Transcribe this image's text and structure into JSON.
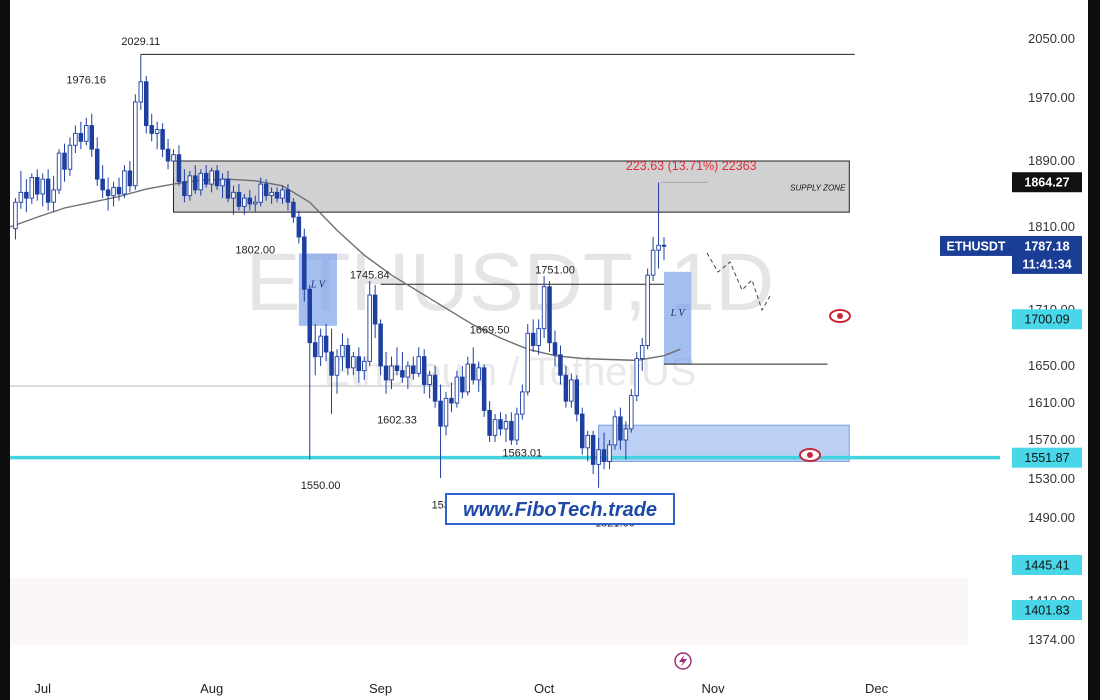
{
  "chart_data": {
    "type": "candlestick",
    "watermark": {
      "symbol": "ETHUSDT, 1D",
      "pair": "Ethereum / TetherUS"
    },
    "ylim": [
      1370,
      2078
    ],
    "y_ticks": [
      2050,
      1970,
      1890,
      1810,
      1710,
      1650,
      1610,
      1570,
      1530,
      1490,
      1410,
      1374
    ],
    "y_tick_labels": [
      "2050.00",
      "1970.00",
      "1890.00",
      "1810.00",
      "1710.00",
      "1650.00",
      "1610.00",
      "1570.00",
      "1530.00",
      "1490.00",
      "1410.00",
      "1374.00"
    ],
    "x_labels": [
      {
        "label": "Jul",
        "day": 6
      },
      {
        "label": "Aug",
        "day": 37
      },
      {
        "label": "Sep",
        "day": 68
      },
      {
        "label": "Oct",
        "day": 98
      },
      {
        "label": "Nov",
        "day": 129
      },
      {
        "label": "Dec",
        "day": 159
      }
    ],
    "price_labels": [
      {
        "text": "1864.27",
        "price": 1864.27,
        "style": "dark"
      },
      {
        "text": "1787.18",
        "price": 1787.18,
        "style": "navy"
      },
      {
        "text": "11:41:34",
        "style": "navy-sub"
      },
      {
        "text": "1700.09",
        "price": 1700.09,
        "style": "cyan"
      },
      {
        "text": "1551.87",
        "price": 1551.87,
        "style": "cyan"
      },
      {
        "text": "1445.41",
        "price": 1445.41,
        "style": "cyan"
      },
      {
        "text": "1401.83",
        "price": 1401.83,
        "style": "cyan"
      }
    ],
    "symbol_tag": "ETHUSDT",
    "annotations": [
      {
        "text": "2029.11",
        "day": 24,
        "price": 2042
      },
      {
        "text": "1976.16",
        "day": 14,
        "price": 1990
      },
      {
        "text": "1802.00",
        "day": 45,
        "price": 1778
      },
      {
        "text": "1745.84",
        "day": 66,
        "price": 1748
      },
      {
        "text": "1751.00",
        "day": 100,
        "price": 1754
      },
      {
        "text": "1669.50",
        "day": 88,
        "price": 1685
      },
      {
        "text": "1602.33",
        "day": 71,
        "price": 1588
      },
      {
        "text": "1550.00",
        "day": 57,
        "price": 1520
      },
      {
        "text": "1531.01",
        "day": 81,
        "price": 1500
      },
      {
        "text": "1563.01",
        "day": 94,
        "price": 1553
      },
      {
        "text": "1521.00",
        "day": 111,
        "price": 1482
      }
    ],
    "supply_zone": {
      "label": "SUPPLY ZONE",
      "from_day": 30,
      "to_day": 154,
      "top": 1890,
      "bottom": 1828
    },
    "demand_zone": {
      "from_day": 108,
      "to_day": 154,
      "top": 1586,
      "bottom": 1548
    },
    "liquidity_voids": [
      {
        "label": "L V",
        "from_day": 53,
        "to_day": 60,
        "top": 1778,
        "bottom": 1693
      },
      {
        "label": "L V",
        "from_day": 120,
        "to_day": 125,
        "top": 1756,
        "bottom": 1652
      }
    ],
    "horizontal_levels": [
      {
        "price": 2029.11,
        "from_day": 24,
        "to_day": 155
      },
      {
        "price": 1741,
        "from_day": 68,
        "to_day": 120
      },
      {
        "price": 1652,
        "from_day": 120,
        "to_day": 150
      },
      {
        "price": 1551.87,
        "from_day": 0,
        "to_day": 200
      }
    ],
    "measure": {
      "text": "223.63 (13.71%) 22363"
    },
    "ema": [
      [
        0,
        1810
      ],
      [
        5,
        1822
      ],
      [
        10,
        1833
      ],
      [
        15,
        1840
      ],
      [
        20,
        1847
      ],
      [
        25,
        1856
      ],
      [
        30,
        1862
      ],
      [
        35,
        1867
      ],
      [
        40,
        1868
      ],
      [
        45,
        1866
      ],
      [
        50,
        1860
      ],
      [
        55,
        1840
      ],
      [
        60,
        1806
      ],
      [
        65,
        1776
      ],
      [
        70,
        1752
      ],
      [
        75,
        1732
      ],
      [
        80,
        1712
      ],
      [
        85,
        1694
      ],
      [
        90,
        1680
      ],
      [
        95,
        1668
      ],
      [
        100,
        1661
      ],
      [
        105,
        1658
      ],
      [
        110,
        1657
      ],
      [
        115,
        1656
      ],
      [
        120,
        1661
      ],
      [
        123,
        1668
      ]
    ],
    "candles": [
      [
        1,
        1808,
        1845,
        1795,
        1840
      ],
      [
        2,
        1840,
        1878,
        1832,
        1852
      ],
      [
        3,
        1852,
        1868,
        1828,
        1845
      ],
      [
        4,
        1845,
        1875,
        1838,
        1870
      ],
      [
        5,
        1870,
        1880,
        1842,
        1850
      ],
      [
        6,
        1850,
        1875,
        1835,
        1868
      ],
      [
        7,
        1868,
        1880,
        1830,
        1840
      ],
      [
        8,
        1840,
        1872,
        1828,
        1855
      ],
      [
        9,
        1855,
        1905,
        1850,
        1900
      ],
      [
        10,
        1900,
        1912,
        1865,
        1880
      ],
      [
        11,
        1880,
        1920,
        1872,
        1910
      ],
      [
        12,
        1910,
        1935,
        1900,
        1925
      ],
      [
        13,
        1925,
        1940,
        1905,
        1915
      ],
      [
        14,
        1915,
        1945,
        1910,
        1935
      ],
      [
        15,
        1935,
        1950,
        1895,
        1905
      ],
      [
        16,
        1905,
        1920,
        1860,
        1868
      ],
      [
        17,
        1868,
        1885,
        1845,
        1855
      ],
      [
        18,
        1855,
        1870,
        1830,
        1848
      ],
      [
        19,
        1848,
        1865,
        1835,
        1858
      ],
      [
        20,
        1858,
        1870,
        1842,
        1850
      ],
      [
        21,
        1850,
        1885,
        1845,
        1878
      ],
      [
        22,
        1878,
        1890,
        1852,
        1860
      ],
      [
        23,
        1860,
        1975,
        1855,
        1965
      ],
      [
        24,
        1965,
        2029,
        1955,
        1992
      ],
      [
        25,
        1992,
        2000,
        1925,
        1935
      ],
      [
        26,
        1935,
        1950,
        1915,
        1925
      ],
      [
        27,
        1925,
        1940,
        1905,
        1930
      ],
      [
        28,
        1930,
        1938,
        1895,
        1905
      ],
      [
        29,
        1905,
        1918,
        1880,
        1890
      ],
      [
        30,
        1890,
        1905,
        1870,
        1898
      ],
      [
        31,
        1898,
        1910,
        1860,
        1865
      ],
      [
        32,
        1865,
        1880,
        1840,
        1848
      ],
      [
        33,
        1848,
        1878,
        1842,
        1872
      ],
      [
        34,
        1872,
        1885,
        1850,
        1855
      ],
      [
        35,
        1855,
        1880,
        1848,
        1875
      ],
      [
        36,
        1875,
        1885,
        1858,
        1862
      ],
      [
        37,
        1862,
        1882,
        1852,
        1878
      ],
      [
        38,
        1878,
        1885,
        1855,
        1860
      ],
      [
        39,
        1860,
        1875,
        1845,
        1868
      ],
      [
        40,
        1868,
        1878,
        1840,
        1845
      ],
      [
        41,
        1845,
        1860,
        1825,
        1852
      ],
      [
        42,
        1852,
        1862,
        1830,
        1835
      ],
      [
        43,
        1835,
        1850,
        1825,
        1845
      ],
      [
        44,
        1845,
        1855,
        1830,
        1838
      ],
      [
        45,
        1838,
        1848,
        1828,
        1840
      ],
      [
        46,
        1840,
        1870,
        1835,
        1862
      ],
      [
        47,
        1862,
        1868,
        1842,
        1848
      ],
      [
        48,
        1848,
        1858,
        1838,
        1852
      ],
      [
        49,
        1852,
        1858,
        1840,
        1845
      ],
      [
        50,
        1845,
        1860,
        1838,
        1855
      ],
      [
        51,
        1855,
        1862,
        1830,
        1840
      ],
      [
        52,
        1840,
        1845,
        1815,
        1822
      ],
      [
        53,
        1822,
        1830,
        1790,
        1798
      ],
      [
        54,
        1798,
        1808,
        1720,
        1735
      ],
      [
        55,
        1735,
        1740,
        1550,
        1675
      ],
      [
        56,
        1675,
        1695,
        1640,
        1660
      ],
      [
        57,
        1660,
        1690,
        1650,
        1682
      ],
      [
        58,
        1682,
        1695,
        1655,
        1665
      ],
      [
        59,
        1665,
        1690,
        1598,
        1640
      ],
      [
        60,
        1640,
        1668,
        1620,
        1660
      ],
      [
        61,
        1660,
        1685,
        1645,
        1672
      ],
      [
        62,
        1672,
        1680,
        1640,
        1648
      ],
      [
        63,
        1648,
        1665,
        1640,
        1660
      ],
      [
        64,
        1660,
        1670,
        1632,
        1645
      ],
      [
        65,
        1645,
        1660,
        1635,
        1655
      ],
      [
        66,
        1655,
        1745,
        1650,
        1728
      ],
      [
        67,
        1728,
        1740,
        1680,
        1695
      ],
      [
        68,
        1695,
        1700,
        1640,
        1650
      ],
      [
        69,
        1650,
        1665,
        1620,
        1635
      ],
      [
        70,
        1635,
        1660,
        1625,
        1650
      ],
      [
        71,
        1650,
        1670,
        1640,
        1645
      ],
      [
        72,
        1645,
        1665,
        1632,
        1638
      ],
      [
        73,
        1638,
        1655,
        1625,
        1650
      ],
      [
        74,
        1650,
        1660,
        1635,
        1642
      ],
      [
        75,
        1642,
        1670,
        1638,
        1660
      ],
      [
        76,
        1660,
        1668,
        1620,
        1630
      ],
      [
        77,
        1630,
        1645,
        1615,
        1640
      ],
      [
        78,
        1640,
        1650,
        1605,
        1612
      ],
      [
        79,
        1612,
        1630,
        1531,
        1585
      ],
      [
        80,
        1585,
        1622,
        1575,
        1615
      ],
      [
        81,
        1615,
        1632,
        1600,
        1610
      ],
      [
        82,
        1610,
        1645,
        1605,
        1638
      ],
      [
        83,
        1638,
        1650,
        1615,
        1622
      ],
      [
        84,
        1622,
        1660,
        1618,
        1652
      ],
      [
        85,
        1652,
        1670,
        1630,
        1635
      ],
      [
        86,
        1635,
        1655,
        1622,
        1648
      ],
      [
        87,
        1648,
        1652,
        1595,
        1602
      ],
      [
        88,
        1602,
        1612,
        1568,
        1575
      ],
      [
        89,
        1575,
        1598,
        1568,
        1592
      ],
      [
        90,
        1592,
        1600,
        1575,
        1582
      ],
      [
        91,
        1582,
        1598,
        1568,
        1590
      ],
      [
        92,
        1590,
        1600,
        1565,
        1570
      ],
      [
        93,
        1570,
        1605,
        1565,
        1598
      ],
      [
        94,
        1598,
        1630,
        1592,
        1622
      ],
      [
        95,
        1622,
        1695,
        1618,
        1685
      ],
      [
        96,
        1685,
        1700,
        1665,
        1672
      ],
      [
        97,
        1672,
        1700,
        1662,
        1690
      ],
      [
        98,
        1690,
        1751,
        1680,
        1738
      ],
      [
        99,
        1738,
        1745,
        1665,
        1675
      ],
      [
        100,
        1675,
        1688,
        1650,
        1662
      ],
      [
        101,
        1662,
        1672,
        1630,
        1640
      ],
      [
        102,
        1640,
        1650,
        1605,
        1612
      ],
      [
        103,
        1612,
        1642,
        1605,
        1635
      ],
      [
        104,
        1635,
        1640,
        1590,
        1598
      ],
      [
        105,
        1598,
        1605,
        1555,
        1562
      ],
      [
        106,
        1562,
        1580,
        1548,
        1575
      ],
      [
        107,
        1575,
        1580,
        1535,
        1545
      ],
      [
        108,
        1545,
        1572,
        1521,
        1560
      ],
      [
        109,
        1560,
        1578,
        1540,
        1548
      ],
      [
        110,
        1548,
        1570,
        1540,
        1565
      ],
      [
        111,
        1565,
        1602,
        1560,
        1595
      ],
      [
        112,
        1595,
        1605,
        1560,
        1570
      ],
      [
        113,
        1570,
        1590,
        1550,
        1582
      ],
      [
        114,
        1582,
        1625,
        1578,
        1618
      ],
      [
        115,
        1618,
        1665,
        1612,
        1658
      ],
      [
        116,
        1658,
        1680,
        1645,
        1672
      ],
      [
        117,
        1672,
        1760,
        1668,
        1752
      ],
      [
        118,
        1752,
        1798,
        1745,
        1782
      ],
      [
        119,
        1782,
        1864,
        1760,
        1788
      ],
      [
        120,
        1788,
        1798,
        1770,
        1787
      ]
    ]
  },
  "footer": {
    "site": "www.FiboTech.trade"
  }
}
